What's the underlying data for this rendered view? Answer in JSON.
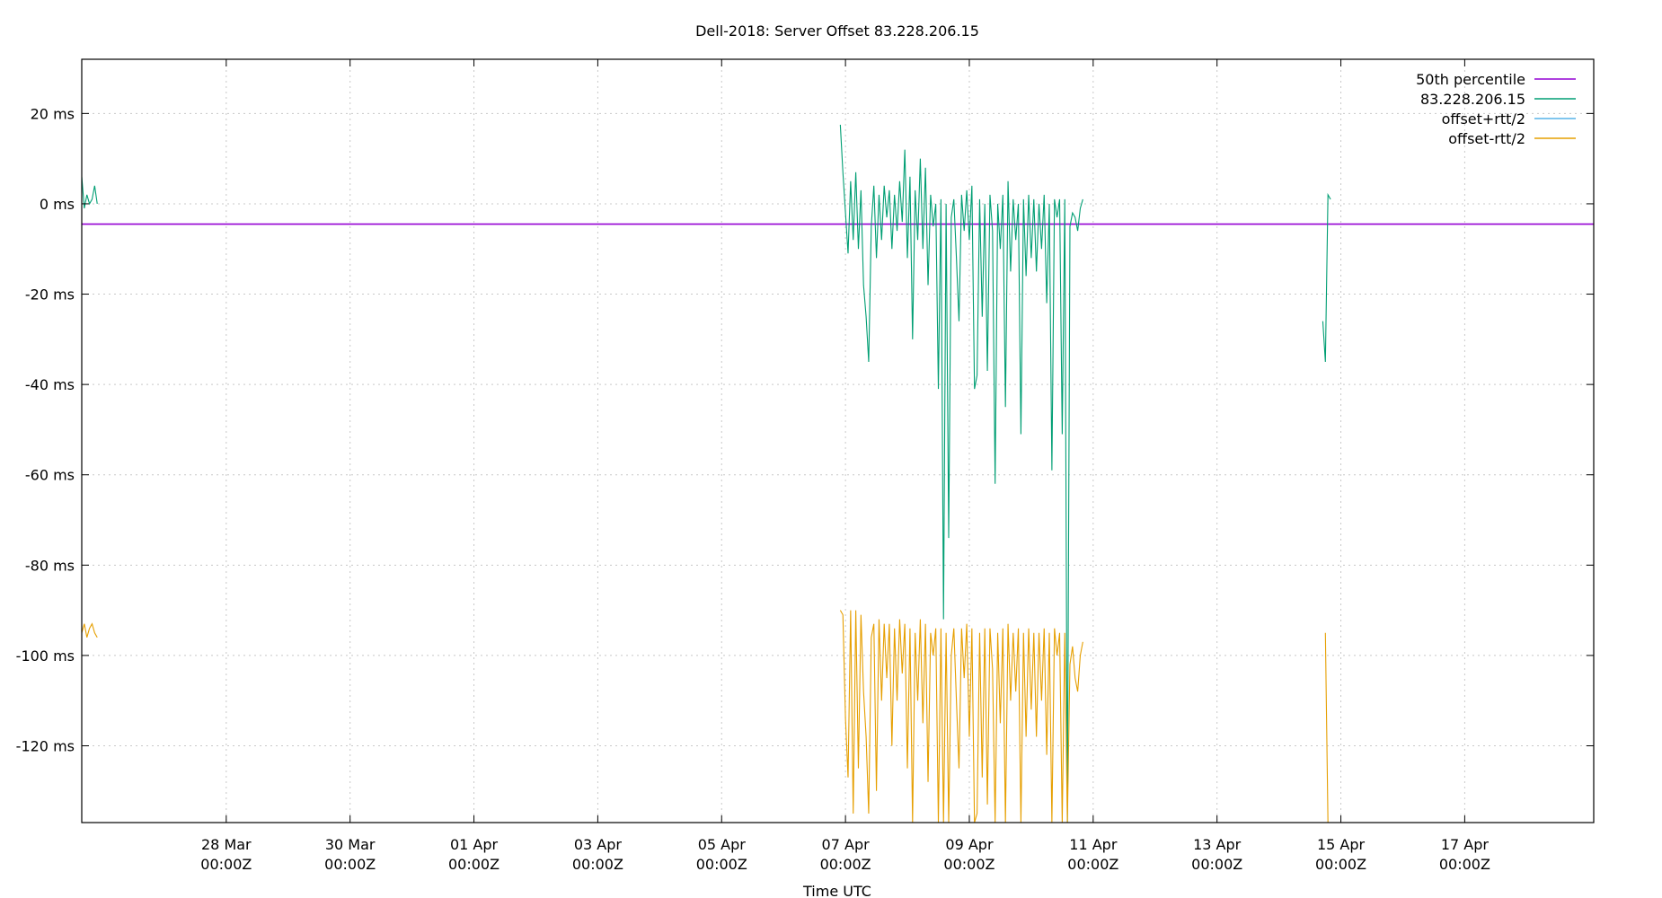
{
  "chart_data": {
    "type": "line",
    "title": "Dell-2018: Server Offset 83.228.206.15",
    "xlabel": "Time UTC",
    "ylabel": "",
    "y_unit": "ms",
    "xlim": [
      "2024-03-25T16:00:00Z",
      "2024-04-19T02:00:00Z"
    ],
    "ylim": [
      -137,
      32
    ],
    "grid": true,
    "legend_position": "top-right",
    "x_ticks": [
      {
        "date": "2024-03-28T00:00:00Z",
        "line1": "28 Mar",
        "line2": "00:00Z"
      },
      {
        "date": "2024-03-30T00:00:00Z",
        "line1": "30 Mar",
        "line2": "00:00Z"
      },
      {
        "date": "2024-04-01T00:00:00Z",
        "line1": "01 Apr",
        "line2": "00:00Z"
      },
      {
        "date": "2024-04-03T00:00:00Z",
        "line1": "03 Apr",
        "line2": "00:00Z"
      },
      {
        "date": "2024-04-05T00:00:00Z",
        "line1": "05 Apr",
        "line2": "00:00Z"
      },
      {
        "date": "2024-04-07T00:00:00Z",
        "line1": "07 Apr",
        "line2": "00:00Z"
      },
      {
        "date": "2024-04-09T00:00:00Z",
        "line1": "09 Apr",
        "line2": "00:00Z"
      },
      {
        "date": "2024-04-11T00:00:00Z",
        "line1": "11 Apr",
        "line2": "00:00Z"
      },
      {
        "date": "2024-04-13T00:00:00Z",
        "line1": "13 Apr",
        "line2": "00:00Z"
      },
      {
        "date": "2024-04-15T00:00:00Z",
        "line1": "15 Apr",
        "line2": "00:00Z"
      },
      {
        "date": "2024-04-17T00:00:00Z",
        "line1": "17 Apr",
        "line2": "00:00Z"
      }
    ],
    "y_ticks": [
      {
        "value": 20,
        "label": "20 ms"
      },
      {
        "value": 0,
        "label": "0 ms"
      },
      {
        "value": -20,
        "label": "-20 ms"
      },
      {
        "value": -40,
        "label": "-40 ms"
      },
      {
        "value": -60,
        "label": "-60 ms"
      },
      {
        "value": -80,
        "label": "-80 ms"
      },
      {
        "value": -100,
        "label": "-100 ms"
      },
      {
        "value": -120,
        "label": "-120 ms"
      }
    ],
    "series": [
      {
        "name": "50th percentile",
        "color": "#9400d3",
        "type": "hline",
        "value": -4.5
      },
      {
        "name": "83.228.206.15",
        "color": "#009e73",
        "points": [
          [
            "2024-03-25T16:00:00Z",
            6
          ],
          [
            "2024-03-25T17:00:00Z",
            -1
          ],
          [
            "2024-03-25T18:00:00Z",
            2
          ],
          [
            "2024-03-25T19:00:00Z",
            0
          ],
          [
            "2024-03-25T20:00:00Z",
            1
          ],
          [
            "2024-03-25T21:00:00Z",
            4
          ],
          [
            "2024-03-25T22:00:00Z",
            0
          ],
          [
            "2024-04-06T22:00:00Z",
            17.5
          ],
          [
            "2024-04-06T23:00:00Z",
            7
          ],
          [
            "2024-04-07T00:00:00Z",
            -2
          ],
          [
            "2024-04-07T01:00:00Z",
            -11
          ],
          [
            "2024-04-07T02:00:00Z",
            5
          ],
          [
            "2024-04-07T03:00:00Z",
            -8
          ],
          [
            "2024-04-07T04:00:00Z",
            7
          ],
          [
            "2024-04-07T05:00:00Z",
            -10
          ],
          [
            "2024-04-07T06:00:00Z",
            3
          ],
          [
            "2024-04-07T07:00:00Z",
            -18
          ],
          [
            "2024-04-07T08:00:00Z",
            -25
          ],
          [
            "2024-04-07T09:00:00Z",
            -35
          ],
          [
            "2024-04-07T10:00:00Z",
            -5
          ],
          [
            "2024-04-07T11:00:00Z",
            4
          ],
          [
            "2024-04-07T12:00:00Z",
            -12
          ],
          [
            "2024-04-07T13:00:00Z",
            2
          ],
          [
            "2024-04-07T14:00:00Z",
            -8
          ],
          [
            "2024-04-07T15:00:00Z",
            4
          ],
          [
            "2024-04-07T16:00:00Z",
            -3
          ],
          [
            "2024-04-07T17:00:00Z",
            3
          ],
          [
            "2024-04-07T18:00:00Z",
            -10
          ],
          [
            "2024-04-07T19:00:00Z",
            2
          ],
          [
            "2024-04-07T20:00:00Z",
            -6
          ],
          [
            "2024-04-07T21:00:00Z",
            5
          ],
          [
            "2024-04-07T22:00:00Z",
            -4
          ],
          [
            "2024-04-07T23:00:00Z",
            12
          ],
          [
            "2024-04-08T00:00:00Z",
            -12
          ],
          [
            "2024-04-08T01:00:00Z",
            6
          ],
          [
            "2024-04-08T02:00:00Z",
            -30
          ],
          [
            "2024-04-08T03:00:00Z",
            3
          ],
          [
            "2024-04-08T04:00:00Z",
            -8
          ],
          [
            "2024-04-08T05:00:00Z",
            10
          ],
          [
            "2024-04-08T06:00:00Z",
            -10
          ],
          [
            "2024-04-08T07:00:00Z",
            8
          ],
          [
            "2024-04-08T08:00:00Z",
            -18
          ],
          [
            "2024-04-08T09:00:00Z",
            2
          ],
          [
            "2024-04-08T10:00:00Z",
            -5
          ],
          [
            "2024-04-08T11:00:00Z",
            0
          ],
          [
            "2024-04-08T12:00:00Z",
            -41
          ],
          [
            "2024-04-08T13:00:00Z",
            1
          ],
          [
            "2024-04-08T14:00:00Z",
            -92
          ],
          [
            "2024-04-08T15:00:00Z",
            0
          ],
          [
            "2024-04-08T16:00:00Z",
            -74
          ],
          [
            "2024-04-08T17:00:00Z",
            -3
          ],
          [
            "2024-04-08T18:00:00Z",
            1
          ],
          [
            "2024-04-08T19:00:00Z",
            -12
          ],
          [
            "2024-04-08T20:00:00Z",
            -26
          ],
          [
            "2024-04-08T21:00:00Z",
            2
          ],
          [
            "2024-04-08T22:00:00Z",
            -6
          ],
          [
            "2024-04-08T23:00:00Z",
            3
          ],
          [
            "2024-04-09T00:00:00Z",
            -8
          ],
          [
            "2024-04-09T01:00:00Z",
            4
          ],
          [
            "2024-04-09T02:00:00Z",
            -41
          ],
          [
            "2024-04-09T03:00:00Z",
            -38
          ],
          [
            "2024-04-09T04:00:00Z",
            1
          ],
          [
            "2024-04-09T05:00:00Z",
            -25
          ],
          [
            "2024-04-09T06:00:00Z",
            0
          ],
          [
            "2024-04-09T07:00:00Z",
            -37
          ],
          [
            "2024-04-09T08:00:00Z",
            2
          ],
          [
            "2024-04-09T09:00:00Z",
            -6
          ],
          [
            "2024-04-09T10:00:00Z",
            -62
          ],
          [
            "2024-04-09T11:00:00Z",
            0
          ],
          [
            "2024-04-09T12:00:00Z",
            -10
          ],
          [
            "2024-04-09T13:00:00Z",
            2
          ],
          [
            "2024-04-09T14:00:00Z",
            -45
          ],
          [
            "2024-04-09T15:00:00Z",
            5
          ],
          [
            "2024-04-09T16:00:00Z",
            -15
          ],
          [
            "2024-04-09T17:00:00Z",
            1
          ],
          [
            "2024-04-09T18:00:00Z",
            -8
          ],
          [
            "2024-04-09T19:00:00Z",
            0
          ],
          [
            "2024-04-09T20:00:00Z",
            -51
          ],
          [
            "2024-04-09T21:00:00Z",
            1
          ],
          [
            "2024-04-09T22:00:00Z",
            -16
          ],
          [
            "2024-04-09T23:00:00Z",
            2
          ],
          [
            "2024-04-10T00:00:00Z",
            -12
          ],
          [
            "2024-04-10T01:00:00Z",
            1
          ],
          [
            "2024-04-10T02:00:00Z",
            -15
          ],
          [
            "2024-04-10T03:00:00Z",
            0
          ],
          [
            "2024-04-10T04:00:00Z",
            -10
          ],
          [
            "2024-04-10T05:00:00Z",
            2
          ],
          [
            "2024-04-10T06:00:00Z",
            -22
          ],
          [
            "2024-04-10T07:00:00Z",
            0
          ],
          [
            "2024-04-10T08:00:00Z",
            -59
          ],
          [
            "2024-04-10T09:00:00Z",
            1
          ],
          [
            "2024-04-10T10:00:00Z",
            -3
          ],
          [
            "2024-04-10T11:00:00Z",
            1
          ],
          [
            "2024-04-10T12:00:00Z",
            -51
          ],
          [
            "2024-04-10T13:00:00Z",
            1
          ],
          [
            "2024-04-10T14:00:00Z",
            -137
          ],
          [
            "2024-04-10T15:00:00Z",
            -5
          ],
          [
            "2024-04-10T16:00:00Z",
            -2
          ],
          [
            "2024-04-10T17:00:00Z",
            -3
          ],
          [
            "2024-04-10T18:00:00Z",
            -6
          ],
          [
            "2024-04-10T19:00:00Z",
            -1
          ],
          [
            "2024-04-10T20:00:00Z",
            1
          ],
          [
            "2024-04-14T17:00:00Z",
            -26
          ],
          [
            "2024-04-14T18:00:00Z",
            -35
          ],
          [
            "2024-04-14T19:00:00Z",
            2
          ],
          [
            "2024-04-14T20:00:00Z",
            1
          ]
        ]
      },
      {
        "name": "offset+rtt/2",
        "color": "#56b4e9",
        "points": []
      },
      {
        "name": "offset-rtt/2",
        "color": "#e69f00",
        "points": [
          [
            "2024-03-25T16:00:00Z",
            -95
          ],
          [
            "2024-03-25T17:00:00Z",
            -93
          ],
          [
            "2024-03-25T18:00:00Z",
            -96
          ],
          [
            "2024-03-25T19:00:00Z",
            -94
          ],
          [
            "2024-03-25T20:00:00Z",
            -93
          ],
          [
            "2024-03-25T21:00:00Z",
            -95
          ],
          [
            "2024-03-25T22:00:00Z",
            -96
          ],
          [
            "2024-04-06T22:00:00Z",
            -90
          ],
          [
            "2024-04-06T23:00:00Z",
            -91
          ],
          [
            "2024-04-07T00:00:00Z",
            -114
          ],
          [
            "2024-04-07T01:00:00Z",
            -127
          ],
          [
            "2024-04-07T02:00:00Z",
            -90
          ],
          [
            "2024-04-07T03:00:00Z",
            -135
          ],
          [
            "2024-04-07T04:00:00Z",
            -90
          ],
          [
            "2024-04-07T05:00:00Z",
            -125
          ],
          [
            "2024-04-07T06:00:00Z",
            -91
          ],
          [
            "2024-04-07T07:00:00Z",
            -108
          ],
          [
            "2024-04-07T08:00:00Z",
            -118
          ],
          [
            "2024-04-07T09:00:00Z",
            -135
          ],
          [
            "2024-04-07T10:00:00Z",
            -96
          ],
          [
            "2024-04-07T11:00:00Z",
            -93
          ],
          [
            "2024-04-07T12:00:00Z",
            -130
          ],
          [
            "2024-04-07T13:00:00Z",
            -92
          ],
          [
            "2024-04-07T14:00:00Z",
            -110
          ],
          [
            "2024-04-07T15:00:00Z",
            -93
          ],
          [
            "2024-04-07T16:00:00Z",
            -105
          ],
          [
            "2024-04-07T17:00:00Z",
            -93
          ],
          [
            "2024-04-07T18:00:00Z",
            -120
          ],
          [
            "2024-04-07T19:00:00Z",
            -94
          ],
          [
            "2024-04-07T20:00:00Z",
            -110
          ],
          [
            "2024-04-07T21:00:00Z",
            -92
          ],
          [
            "2024-04-07T22:00:00Z",
            -104
          ],
          [
            "2024-04-07T23:00:00Z",
            -93
          ],
          [
            "2024-04-08T00:00:00Z",
            -125
          ],
          [
            "2024-04-08T01:00:00Z",
            -94
          ],
          [
            "2024-04-08T02:00:00Z",
            -137
          ],
          [
            "2024-04-08T03:00:00Z",
            -95
          ],
          [
            "2024-04-08T04:00:00Z",
            -110
          ],
          [
            "2024-04-08T05:00:00Z",
            -92
          ],
          [
            "2024-04-08T06:00:00Z",
            -115
          ],
          [
            "2024-04-08T07:00:00Z",
            -93
          ],
          [
            "2024-04-08T08:00:00Z",
            -128
          ],
          [
            "2024-04-08T09:00:00Z",
            -95
          ],
          [
            "2024-04-08T10:00:00Z",
            -100
          ],
          [
            "2024-04-08T11:00:00Z",
            -94
          ],
          [
            "2024-04-08T12:00:00Z",
            -137
          ],
          [
            "2024-04-08T13:00:00Z",
            -94
          ],
          [
            "2024-04-08T14:00:00Z",
            -137
          ],
          [
            "2024-04-08T15:00:00Z",
            -95
          ],
          [
            "2024-04-08T16:00:00Z",
            -137
          ],
          [
            "2024-04-08T17:00:00Z",
            -100
          ],
          [
            "2024-04-08T18:00:00Z",
            -94
          ],
          [
            "2024-04-08T19:00:00Z",
            -110
          ],
          [
            "2024-04-08T20:00:00Z",
            -125
          ],
          [
            "2024-04-08T21:00:00Z",
            -94
          ],
          [
            "2024-04-08T22:00:00Z",
            -105
          ],
          [
            "2024-04-08T23:00:00Z",
            -93
          ],
          [
            "2024-04-09T00:00:00Z",
            -118
          ],
          [
            "2024-04-09T01:00:00Z",
            -94
          ],
          [
            "2024-04-09T02:00:00Z",
            -137
          ],
          [
            "2024-04-09T03:00:00Z",
            -135
          ],
          [
            "2024-04-09T04:00:00Z",
            -95
          ],
          [
            "2024-04-09T05:00:00Z",
            -127
          ],
          [
            "2024-04-09T06:00:00Z",
            -94
          ],
          [
            "2024-04-09T07:00:00Z",
            -133
          ],
          [
            "2024-04-09T08:00:00Z",
            -94
          ],
          [
            "2024-04-09T09:00:00Z",
            -103
          ],
          [
            "2024-04-09T10:00:00Z",
            -137
          ],
          [
            "2024-04-09T11:00:00Z",
            -95
          ],
          [
            "2024-04-09T12:00:00Z",
            -115
          ],
          [
            "2024-04-09T13:00:00Z",
            -94
          ],
          [
            "2024-04-09T14:00:00Z",
            -137
          ],
          [
            "2024-04-09T15:00:00Z",
            -93
          ],
          [
            "2024-04-09T16:00:00Z",
            -110
          ],
          [
            "2024-04-09T17:00:00Z",
            -95
          ],
          [
            "2024-04-09T18:00:00Z",
            -108
          ],
          [
            "2024-04-09T19:00:00Z",
            -94
          ],
          [
            "2024-04-09T20:00:00Z",
            -137
          ],
          [
            "2024-04-09T21:00:00Z",
            -95
          ],
          [
            "2024-04-09T22:00:00Z",
            -118
          ],
          [
            "2024-04-09T23:00:00Z",
            -94
          ],
          [
            "2024-04-10T00:00:00Z",
            -112
          ],
          [
            "2024-04-10T01:00:00Z",
            -95
          ],
          [
            "2024-04-10T02:00:00Z",
            -118
          ],
          [
            "2024-04-10T03:00:00Z",
            -95
          ],
          [
            "2024-04-10T04:00:00Z",
            -110
          ],
          [
            "2024-04-10T05:00:00Z",
            -94
          ],
          [
            "2024-04-10T06:00:00Z",
            -122
          ],
          [
            "2024-04-10T07:00:00Z",
            -95
          ],
          [
            "2024-04-10T08:00:00Z",
            -137
          ],
          [
            "2024-04-10T09:00:00Z",
            -94
          ],
          [
            "2024-04-10T10:00:00Z",
            -100
          ],
          [
            "2024-04-10T11:00:00Z",
            -95
          ],
          [
            "2024-04-10T12:00:00Z",
            -137
          ],
          [
            "2024-04-10T13:00:00Z",
            -95
          ],
          [
            "2024-04-10T14:00:00Z",
            -137
          ],
          [
            "2024-04-10T15:00:00Z",
            -102
          ],
          [
            "2024-04-10T16:00:00Z",
            -98
          ],
          [
            "2024-04-10T17:00:00Z",
            -105
          ],
          [
            "2024-04-10T18:00:00Z",
            -108
          ],
          [
            "2024-04-10T19:00:00Z",
            -100
          ],
          [
            "2024-04-10T20:00:00Z",
            -97
          ],
          [
            "2024-04-14T18:00:00Z",
            -95
          ],
          [
            "2024-04-14T19:00:00Z",
            -137
          ]
        ]
      }
    ]
  }
}
